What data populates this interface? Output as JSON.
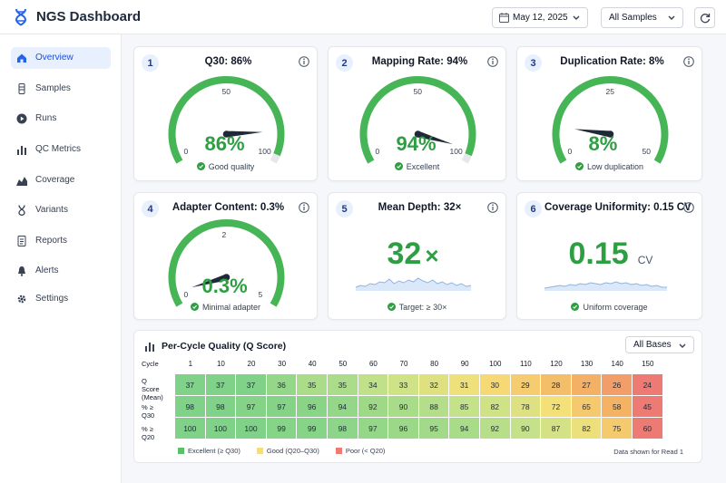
{
  "app": {
    "title": "NGS Dashboard"
  },
  "header": {
    "date": "May 12, 2025",
    "sample_filter": "All Samples"
  },
  "sidebar": {
    "items": [
      {
        "label": "Overview",
        "icon": "home-icon",
        "active": true
      },
      {
        "label": "Samples",
        "icon": "sample-tube-icon"
      },
      {
        "label": "Runs",
        "icon": "play-circle-icon"
      },
      {
        "label": "QC Metrics",
        "icon": "bar-chart-icon"
      },
      {
        "label": "Coverage",
        "icon": "area-chart-icon"
      },
      {
        "label": "Variants",
        "icon": "dna-icon"
      },
      {
        "label": "Reports",
        "icon": "document-icon"
      },
      {
        "label": "Alerts",
        "icon": "bell-icon"
      },
      {
        "label": "Settings",
        "icon": "gear-icon"
      }
    ]
  },
  "cards": [
    {
      "num": "1",
      "title": "Q30: 86%",
      "value": "86%",
      "status": "Good quality",
      "gauge": {
        "min": "0",
        "mid": "50",
        "max": "100",
        "min_value": 0,
        "max_value": 100,
        "needle_value": 86
      }
    },
    {
      "num": "2",
      "title": "Mapping Rate: 94%",
      "value": "94%",
      "status": "Excellent",
      "gauge": {
        "min": "0",
        "mid": "50",
        "max": "100",
        "min_value": 0,
        "max_value": 100,
        "needle_value": 94
      }
    },
    {
      "num": "3",
      "title": "Duplication Rate: 8%",
      "value": "8%",
      "status": "Low duplication",
      "gauge": {
        "min": "0",
        "mid": "25",
        "max": "50",
        "min_value": 0,
        "max_value": 50,
        "needle_value": 8
      }
    },
    {
      "num": "4",
      "title": "Adapter Content: 0.3%",
      "value": "0.3%",
      "status": "Minimal adapter",
      "gauge": {
        "min": "0",
        "mid": "2",
        "max": "5",
        "min_value": 0,
        "max_value": 5,
        "needle_value": 0.3
      }
    },
    {
      "num": "5",
      "title": "Mean Depth: 32×",
      "value": "32",
      "value_suffix": "×",
      "status": "Target: ≥ 30×"
    },
    {
      "num": "6",
      "title": "Coverage Uniformity: 0.15 CV",
      "value": "0.15",
      "value_unit": "CV",
      "status": "Uniform coverage"
    }
  ],
  "quality_table": {
    "title": "Per-Cycle Quality (Q Score)",
    "filter": "All Bases",
    "header_label": "Cycle",
    "cycles": [
      "1",
      "10",
      "20",
      "30",
      "40",
      "50",
      "60",
      "70",
      "80",
      "90",
      "100",
      "110",
      "120",
      "130",
      "140",
      "150"
    ],
    "rows": [
      {
        "label_line1": "Q Score",
        "label_line2": "(Mean)",
        "values": [
          "37",
          "37",
          "37",
          "36",
          "35",
          "35",
          "34",
          "33",
          "32",
          "31",
          "30",
          "29",
          "28",
          "27",
          "26",
          "24"
        ]
      },
      {
        "label_line1": "% ≥ Q30",
        "label_line2": "",
        "values": [
          "98",
          "98",
          "97",
          "97",
          "96",
          "94",
          "92",
          "90",
          "88",
          "85",
          "82",
          "78",
          "72",
          "65",
          "58",
          "45"
        ]
      },
      {
        "label_line1": "% ≥ Q20",
        "label_line2": "",
        "values": [
          "100",
          "100",
          "100",
          "99",
          "99",
          "98",
          "97",
          "96",
          "95",
          "94",
          "92",
          "90",
          "87",
          "82",
          "75",
          "60"
        ]
      }
    ],
    "legend": [
      {
        "label": "Excellent (≥ Q30)",
        "color": "#5cc06b"
      },
      {
        "label": "Good (Q20–Q30)",
        "color": "#f6df6a"
      },
      {
        "label": "Poor (< Q20)",
        "color": "#ee7b73"
      }
    ],
    "footnote": "Data shown for Read 1"
  },
  "colors": {
    "accent": "#2563eb",
    "good": "#2e9e43",
    "gauge_track": "#e5e7eb"
  }
}
